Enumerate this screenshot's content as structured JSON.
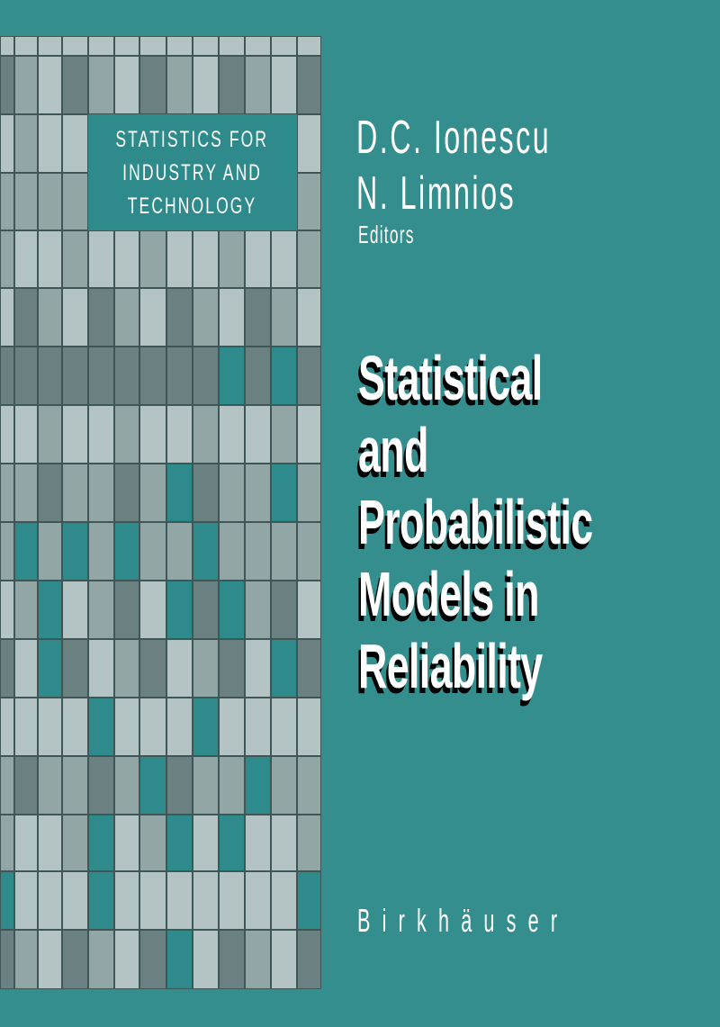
{
  "cover": {
    "series": [
      "STATISTICS FOR",
      "INDUSTRY AND",
      "TECHNOLOGY"
    ],
    "authors": [
      "D.C. Ionescu",
      "N. Limnios"
    ],
    "editors_label": "Editors",
    "title_lines": [
      "Statistical",
      "and",
      "Probabilistic",
      "Models in",
      "Reliability"
    ],
    "publisher": "Birkhäuser"
  },
  "colors": {
    "background": "#358e8e",
    "teal_cell": "#2f8b8b",
    "light_cell": "#b4c4c4",
    "mid_cell": "#93a6a6",
    "dark_cell": "#6b8181",
    "title_text": "#ffffff",
    "title_shadow": "#000000"
  }
}
